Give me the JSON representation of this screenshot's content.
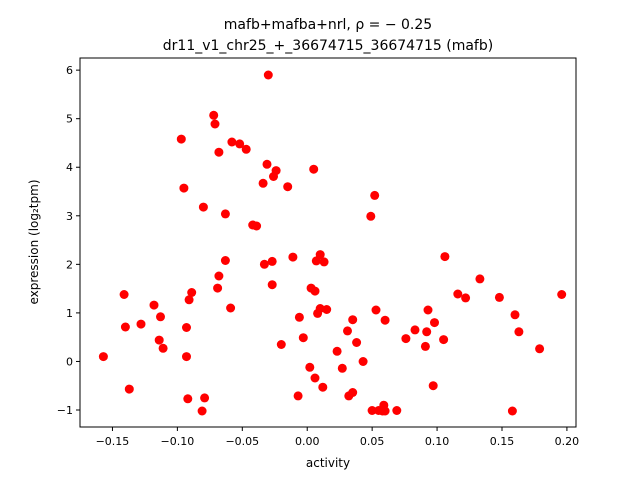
{
  "chart_data": {
    "type": "scatter",
    "title_line1": "mafb+mafba+nrl, ρ = − 0.25",
    "title_line2": "dr11_v1_chr25_+_36674715_36674715 (mafb)",
    "xlabel": "activity",
    "ylabel": "expression (log₂tpm)",
    "xlim": [
      -0.175,
      0.207
    ],
    "ylim": [
      -1.35,
      6.25
    ],
    "xticks": [
      -0.15,
      -0.1,
      -0.05,
      0.0,
      0.05,
      0.1,
      0.15,
      0.2
    ],
    "xtick_labels": [
      "−0.15",
      "−0.10",
      "−0.05",
      "0.00",
      "0.05",
      "0.10",
      "0.15",
      "0.20"
    ],
    "yticks": [
      -1,
      0,
      1,
      2,
      3,
      4,
      5,
      6
    ],
    "ytick_labels": [
      "−1",
      "0",
      "1",
      "2",
      "3",
      "4",
      "5",
      "6"
    ],
    "marker_color": "#ff0000",
    "points": [
      [
        -0.157,
        0.1
      ],
      [
        -0.141,
        1.38
      ],
      [
        -0.14,
        0.71
      ],
      [
        -0.137,
        -0.57
      ],
      [
        -0.128,
        0.77
      ],
      [
        -0.118,
        1.16
      ],
      [
        -0.114,
        0.44
      ],
      [
        -0.113,
        0.92
      ],
      [
        -0.111,
        0.27
      ],
      [
        -0.097,
        4.58
      ],
      [
        -0.095,
        3.57
      ],
      [
        -0.093,
        0.1
      ],
      [
        -0.093,
        0.7
      ],
      [
        -0.092,
        -0.77
      ],
      [
        -0.091,
        1.27
      ],
      [
        -0.089,
        1.42
      ],
      [
        -0.081,
        -1.02
      ],
      [
        -0.079,
        -0.75
      ],
      [
        -0.08,
        3.18
      ],
      [
        -0.072,
        5.07
      ],
      [
        -0.071,
        4.89
      ],
      [
        -0.069,
        1.51
      ],
      [
        -0.068,
        1.76
      ],
      [
        -0.068,
        4.31
      ],
      [
        -0.063,
        3.04
      ],
      [
        -0.063,
        2.08
      ],
      [
        -0.059,
        1.1
      ],
      [
        -0.058,
        4.52
      ],
      [
        -0.052,
        4.48
      ],
      [
        -0.047,
        4.37
      ],
      [
        -0.042,
        2.81
      ],
      [
        -0.039,
        2.79
      ],
      [
        -0.034,
        3.67
      ],
      [
        -0.033,
        2.0
      ],
      [
        -0.031,
        4.06
      ],
      [
        -0.03,
        5.9
      ],
      [
        -0.027,
        2.06
      ],
      [
        -0.027,
        1.58
      ],
      [
        -0.026,
        3.81
      ],
      [
        -0.024,
        3.93
      ],
      [
        -0.02,
        0.35
      ],
      [
        -0.015,
        3.6
      ],
      [
        -0.011,
        2.15
      ],
      [
        -0.007,
        -0.71
      ],
      [
        -0.006,
        0.91
      ],
      [
        -0.003,
        0.49
      ],
      [
        0.002,
        -0.12
      ],
      [
        0.003,
        1.51
      ],
      [
        0.005,
        3.96
      ],
      [
        0.006,
        1.45
      ],
      [
        0.006,
        -0.34
      ],
      [
        0.007,
        2.07
      ],
      [
        0.008,
        0.99
      ],
      [
        0.01,
        1.09
      ],
      [
        0.01,
        2.2
      ],
      [
        0.012,
        -0.53
      ],
      [
        0.013,
        2.05
      ],
      [
        0.015,
        1.07
      ],
      [
        0.023,
        0.21
      ],
      [
        0.027,
        -0.14
      ],
      [
        0.031,
        0.63
      ],
      [
        0.032,
        -0.71
      ],
      [
        0.035,
        -0.64
      ],
      [
        0.035,
        0.86
      ],
      [
        0.038,
        0.39
      ],
      [
        0.043,
        0.0
      ],
      [
        0.049,
        2.99
      ],
      [
        0.05,
        -1.01
      ],
      [
        0.052,
        3.42
      ],
      [
        0.053,
        1.06
      ],
      [
        0.055,
        -1.01
      ],
      [
        0.058,
        -1.02
      ],
      [
        0.059,
        -0.9
      ],
      [
        0.06,
        0.85
      ],
      [
        0.06,
        -1.02
      ],
      [
        0.069,
        -1.01
      ],
      [
        0.076,
        0.47
      ],
      [
        0.083,
        0.65
      ],
      [
        0.091,
        0.31
      ],
      [
        0.092,
        0.61
      ],
      [
        0.093,
        1.06
      ],
      [
        0.097,
        -0.5
      ],
      [
        0.098,
        0.8
      ],
      [
        0.105,
        0.45
      ],
      [
        0.106,
        2.16
      ],
      [
        0.116,
        1.39
      ],
      [
        0.122,
        1.31
      ],
      [
        0.133,
        1.7
      ],
      [
        0.148,
        1.32
      ],
      [
        0.158,
        -1.02
      ],
      [
        0.16,
        0.96
      ],
      [
        0.163,
        0.61
      ],
      [
        0.179,
        0.26
      ],
      [
        0.196,
        1.38
      ]
    ]
  }
}
